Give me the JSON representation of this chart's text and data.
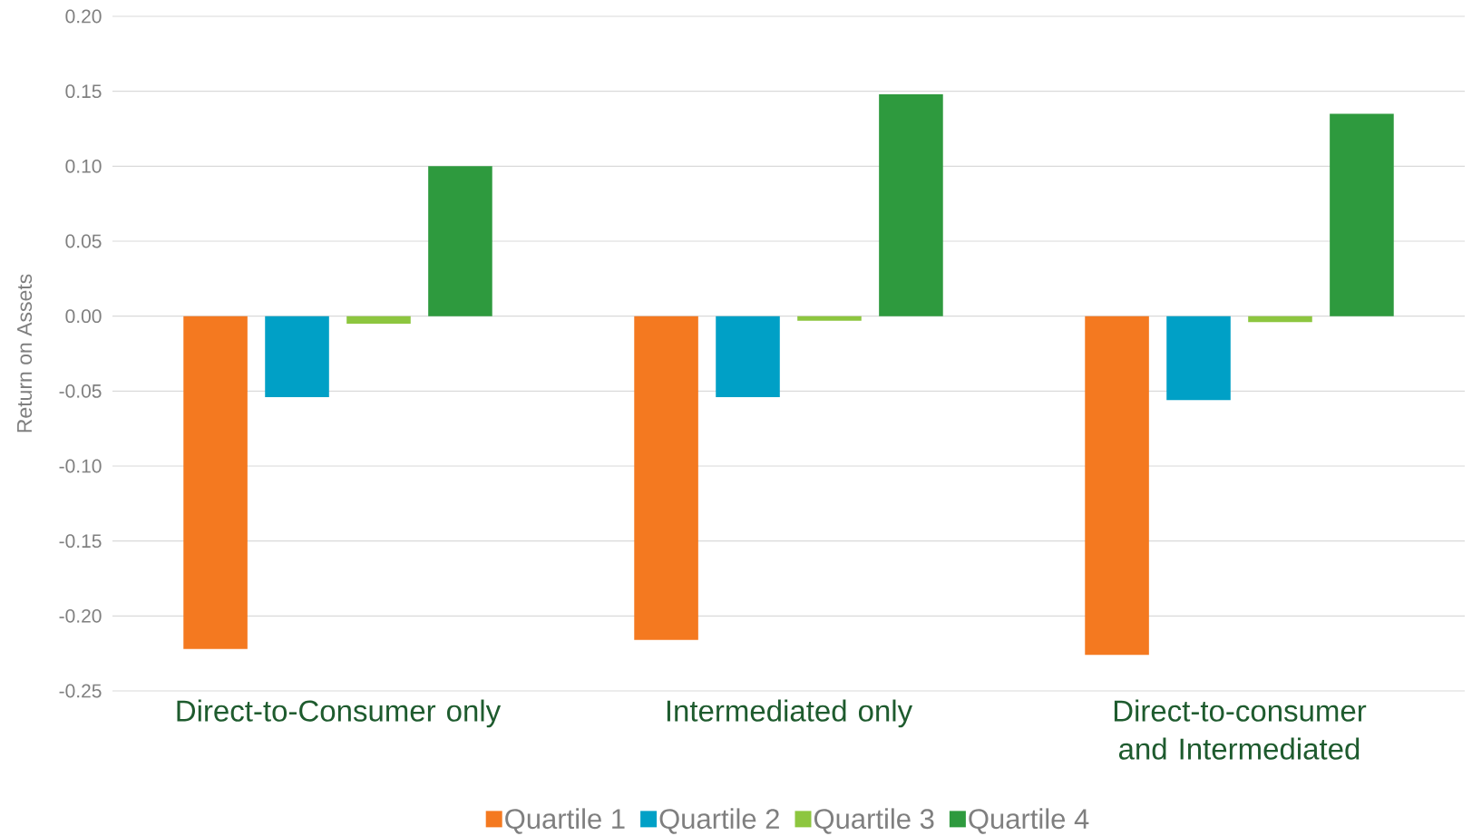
{
  "chart_data": {
    "type": "bar",
    "ylabel": "Return on Assets",
    "categories": [
      "Direct-to-Consumer only",
      "Intermediated only",
      "Direct-to-consumer and Intermediated"
    ],
    "series": [
      {
        "name": "Quartile 1",
        "color": "#f47920",
        "values": [
          -0.222,
          -0.216,
          -0.226
        ]
      },
      {
        "name": "Quartile 2",
        "color": "#00a0c6",
        "values": [
          -0.054,
          -0.054,
          -0.056
        ]
      },
      {
        "name": "Quartile 3",
        "color": "#8dc63f",
        "values": [
          -0.005,
          -0.003,
          -0.004
        ]
      },
      {
        "name": "Quartile 4",
        "color": "#2e9a3e",
        "values": [
          0.1,
          0.148,
          0.135
        ]
      }
    ],
    "ylim": [
      -0.25,
      0.2
    ],
    "yticks": [
      {
        "value": -0.25,
        "label": "-0.25"
      },
      {
        "value": -0.2,
        "label": "-0.20"
      },
      {
        "value": -0.15,
        "label": "-0.15"
      },
      {
        "value": -0.1,
        "label": "-0.10"
      },
      {
        "value": -0.05,
        "label": "-0.05"
      },
      {
        "value": 0,
        "label": "0.00"
      },
      {
        "value": 0.05,
        "label": "0.05"
      },
      {
        "value": 0.1,
        "label": "0.10"
      },
      {
        "value": 0.15,
        "label": "0.15"
      },
      {
        "value": 0.2,
        "label": "0.20"
      }
    ],
    "grid": "y",
    "legend": "bottom"
  }
}
